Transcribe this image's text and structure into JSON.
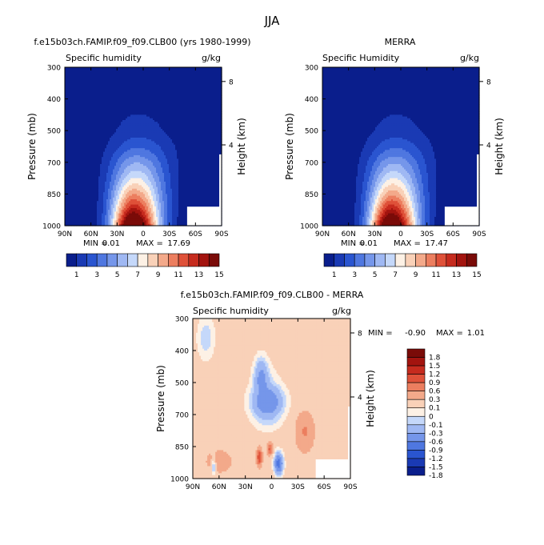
{
  "figure": {
    "title": "JJA"
  },
  "chart_data": [
    {
      "type": "heatmap",
      "title": "f.e15b03ch.FAMIP.f09_f09.CLB00 (yrs 1980-1999)",
      "subtitle_left": "Specific humidity",
      "units": "g/kg",
      "xlabel": "",
      "ylabel": "Pressure (mb)",
      "y2label": "Height (km)",
      "x_ticks": [
        "90N",
        "60N",
        "30N",
        "0",
        "30S",
        "60S",
        "90S"
      ],
      "y_ticks": [
        "300",
        "400",
        "500",
        "700",
        "850",
        "1000"
      ],
      "y2_ticks": [
        "8",
        "4"
      ],
      "stats": {
        "min_label": "MIN =",
        "min": "0.01",
        "max_label": "MAX =",
        "max": "17.69"
      },
      "surface_max": 17.69,
      "colorbar": {
        "colors": [
          "#0a1e8c",
          "#1a3ab4",
          "#2a55d0",
          "#4f77e0",
          "#7596ea",
          "#9fb8f3",
          "#c5d8fa",
          "#fdf1e5",
          "#f9d1b8",
          "#f3a98a",
          "#ec7e5f",
          "#df5139",
          "#c62b1e",
          "#a3140f",
          "#7a0b08"
        ],
        "labels": [
          "1",
          "3",
          "5",
          "7",
          "9",
          "11",
          "13",
          "15"
        ]
      }
    },
    {
      "type": "heatmap",
      "title": "MERRA",
      "subtitle_left": "Specific Humidity",
      "units": "g/kg",
      "xlabel": "",
      "ylabel": "Pressure (mb)",
      "y2label": "Height (km)",
      "x_ticks": [
        "90N",
        "60N",
        "30N",
        "0",
        "30S",
        "60S",
        "90S"
      ],
      "y_ticks": [
        "300",
        "400",
        "500",
        "700",
        "850",
        "1000"
      ],
      "y2_ticks": [
        "8",
        "4"
      ],
      "stats": {
        "min_label": "MIN =",
        "min": "0.01",
        "max_label": "MAX =",
        "max": "17.47"
      },
      "surface_max": 17.47,
      "colorbar": {
        "colors": [
          "#0a1e8c",
          "#1a3ab4",
          "#2a55d0",
          "#4f77e0",
          "#7596ea",
          "#9fb8f3",
          "#c5d8fa",
          "#fdf1e5",
          "#f9d1b8",
          "#f3a98a",
          "#ec7e5f",
          "#df5139",
          "#c62b1e",
          "#a3140f",
          "#7a0b08"
        ],
        "labels": [
          "1",
          "3",
          "5",
          "7",
          "9",
          "11",
          "13",
          "15"
        ]
      }
    },
    {
      "type": "heatmap",
      "title": "f.e15b03ch.FAMIP.f09_f09.CLB00 - MERRA",
      "subtitle_left": "Specific humidity",
      "units": "g/kg",
      "xlabel": "",
      "ylabel": "Pressure (mb)",
      "y2label": "Height (km)",
      "x_ticks": [
        "90N",
        "60N",
        "30N",
        "0",
        "30S",
        "60S",
        "90S"
      ],
      "y_ticks": [
        "300",
        "400",
        "500",
        "700",
        "850",
        "1000"
      ],
      "y2_ticks": [
        "8",
        "4"
      ],
      "stats": {
        "min_label": "MIN =",
        "min": "-0.90",
        "max_label": "MAX =",
        "max": "1.01"
      },
      "colorbar": {
        "colors": [
          "#0a1e8c",
          "#1a3ab4",
          "#2a55d0",
          "#4f77e0",
          "#7596ea",
          "#9fb8f3",
          "#c5d8fa",
          "#fdf1e5",
          "#f9d1b8",
          "#f3a98a",
          "#ec7e5f",
          "#df5139",
          "#c62b1e",
          "#a3140f",
          "#7a0b08"
        ],
        "labels": [
          "1.8",
          "1.5",
          "1.2",
          "0.9",
          "0.6",
          "0.3",
          "0.1",
          "0",
          "-0.1",
          "-0.3",
          "-0.6",
          "-0.9",
          "-1.2",
          "-1.5",
          "-1.8"
        ]
      }
    }
  ]
}
